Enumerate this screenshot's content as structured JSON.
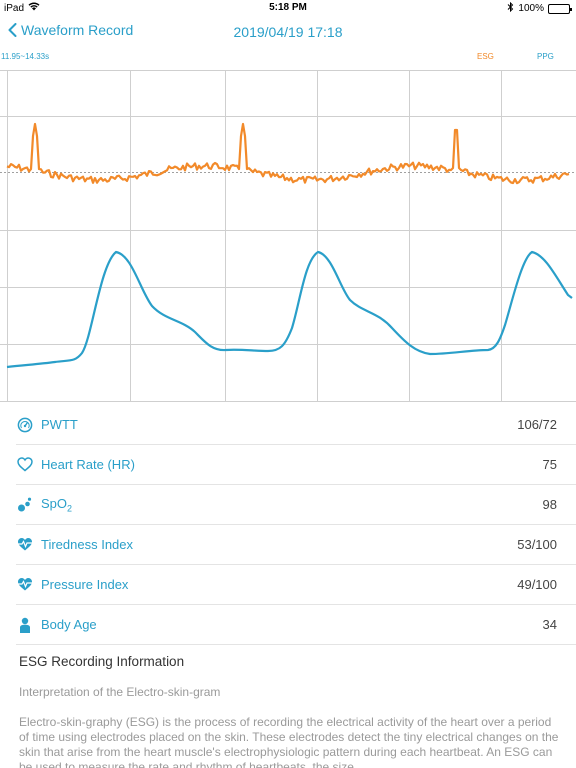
{
  "status_bar": {
    "device": "iPad",
    "time": "5:18 PM",
    "battery_percent": "100%",
    "battery_level": 1.0
  },
  "nav": {
    "back_label": "Waveform Record",
    "title": "2019/04/19 17:18"
  },
  "chart": {
    "range_label": "11.95~14.33s",
    "legend_esg": "ESG",
    "legend_ppg": "PPG",
    "esg_color": "#f28a2a",
    "ppg_color": "#2a9fc9"
  },
  "metrics": [
    {
      "icon": "gauge-icon",
      "label": "PWTT",
      "value": "106/72"
    },
    {
      "icon": "heart-outline-icon",
      "label": "Heart Rate (HR)",
      "value": "75"
    },
    {
      "icon": "drops-icon",
      "label": "SpO",
      "label_sub": "2",
      "value": "98"
    },
    {
      "icon": "heartbeat-icon",
      "label": "Tiredness Index",
      "value": "53/100"
    },
    {
      "icon": "heartbeat-icon",
      "label": "Pressure Index",
      "value": "49/100"
    },
    {
      "icon": "person-icon",
      "label": "Body Age",
      "value": "34"
    }
  ],
  "info": {
    "title": "ESG Recording Information",
    "subtitle": "Interpretation of the Electro-skin-gram",
    "body": "Electro-skin-graphy (ESG) is the process of recording the electrical activity of the heart over a period of time using electrodes placed on the skin. These electrodes detect the tiny electrical changes on the skin that arise from the heart muscle's electrophysiologic pattern during each heartbeat. An ESG can be used to measure the rate and rhythm of heartbeats, the size"
  }
}
